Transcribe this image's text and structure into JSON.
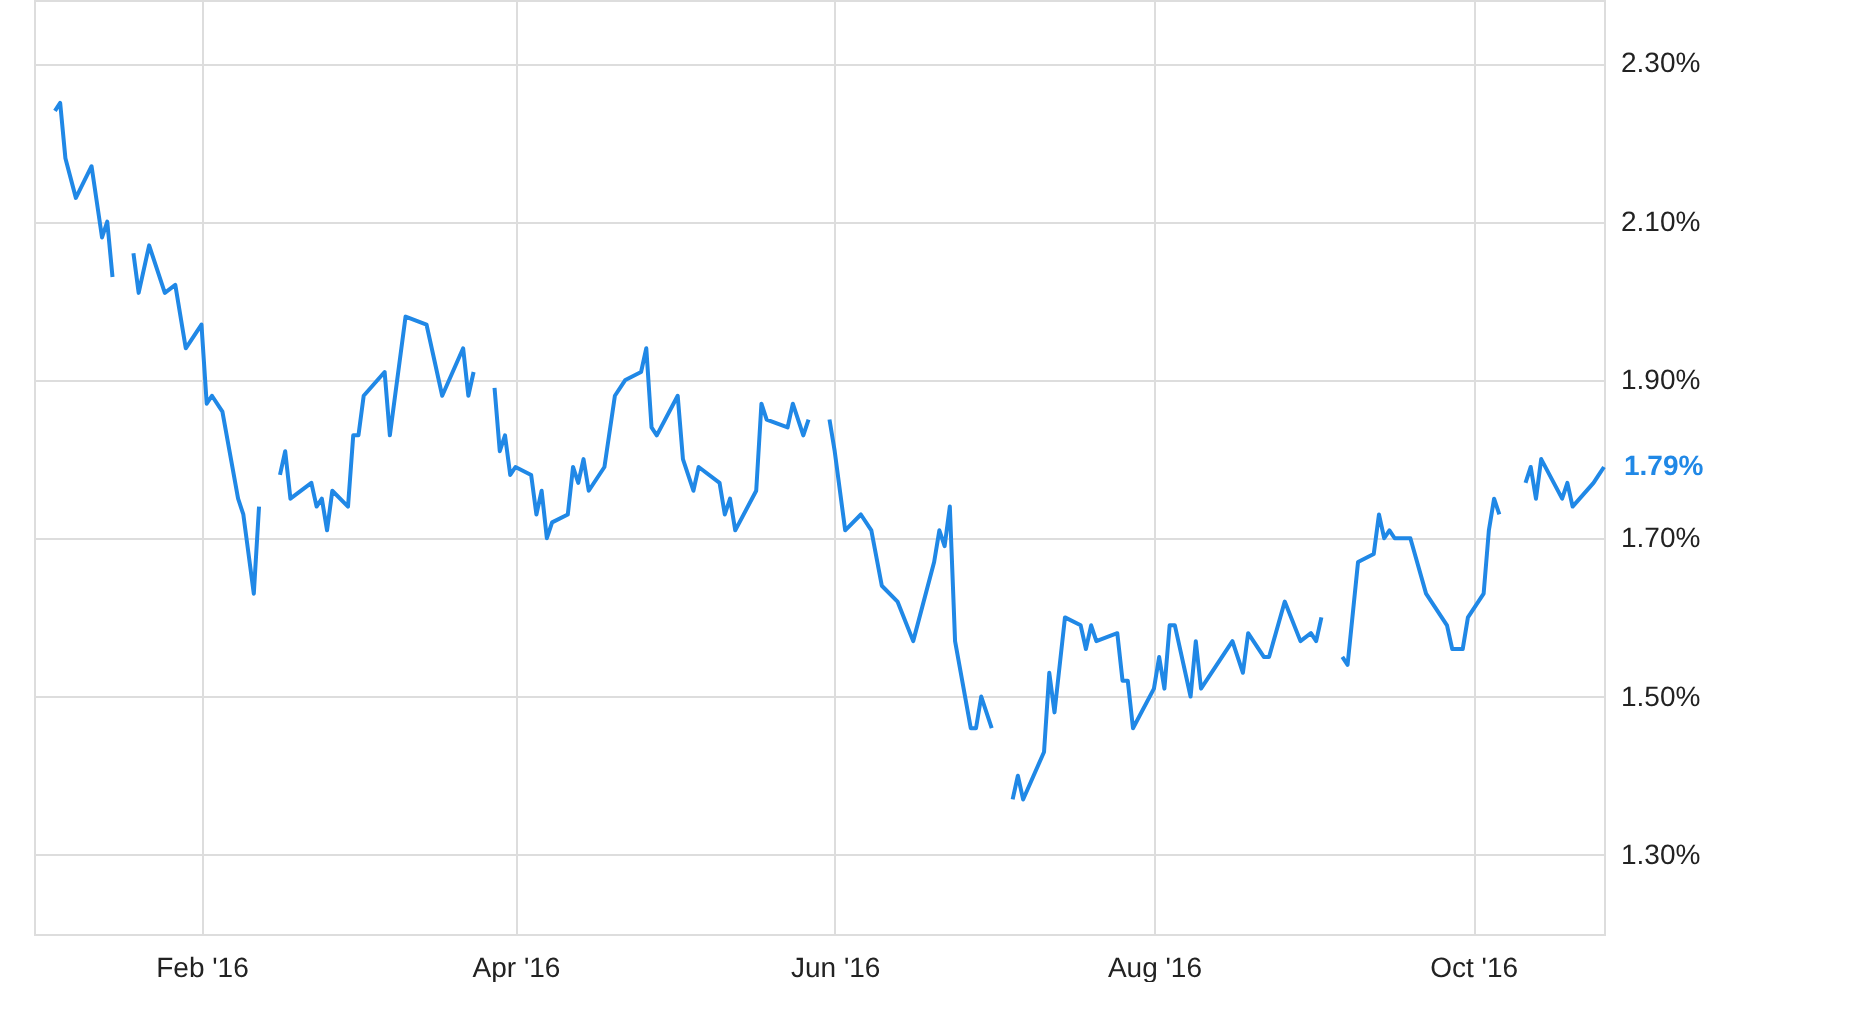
{
  "chart_data": {
    "type": "line",
    "x": [
      "2016-01-04",
      "2016-01-05",
      "2016-01-06",
      "2016-01-08",
      "2016-01-11",
      "2016-01-13",
      "2016-01-14",
      "2016-01-15",
      "2016-01-18",
      "2016-01-19",
      "2016-01-20",
      "2016-01-22",
      "2016-01-25",
      "2016-01-27",
      "2016-01-29",
      "2016-02-01",
      "2016-02-02",
      "2016-02-03",
      "2016-02-05",
      "2016-02-08",
      "2016-02-09",
      "2016-02-11",
      "2016-02-12",
      "2016-02-15",
      "2016-02-16",
      "2016-02-17",
      "2016-02-18",
      "2016-02-22",
      "2016-02-23",
      "2016-02-24",
      "2016-02-25",
      "2016-02-26",
      "2016-02-29",
      "2016-03-01",
      "2016-03-02",
      "2016-03-03",
      "2016-03-07",
      "2016-03-08",
      "2016-03-11",
      "2016-03-15",
      "2016-03-18",
      "2016-03-22",
      "2016-03-23",
      "2016-03-24",
      "2016-03-25",
      "2016-03-28",
      "2016-03-29",
      "2016-03-30",
      "2016-03-31",
      "2016-04-01",
      "2016-04-04",
      "2016-04-05",
      "2016-04-06",
      "2016-04-07",
      "2016-04-08",
      "2016-04-11",
      "2016-04-12",
      "2016-04-13",
      "2016-04-14",
      "2016-04-15",
      "2016-04-18",
      "2016-04-20",
      "2016-04-22",
      "2016-04-25",
      "2016-04-26",
      "2016-04-27",
      "2016-04-28",
      "2016-05-02",
      "2016-05-03",
      "2016-05-05",
      "2016-05-06",
      "2016-05-10",
      "2016-05-11",
      "2016-05-12",
      "2016-05-13",
      "2016-05-17",
      "2016-05-18",
      "2016-05-19",
      "2016-05-23",
      "2016-05-24",
      "2016-05-26",
      "2016-05-27",
      "2016-05-30",
      "2016-05-31",
      "2016-06-01",
      "2016-06-03",
      "2016-06-06",
      "2016-06-08",
      "2016-06-10",
      "2016-06-13",
      "2016-06-16",
      "2016-06-20",
      "2016-06-21",
      "2016-06-22",
      "2016-06-23",
      "2016-06-24",
      "2016-06-27",
      "2016-06-28",
      "2016-06-29",
      "2016-07-01",
      "2016-07-04",
      "2016-07-05",
      "2016-07-06",
      "2016-07-07",
      "2016-07-11",
      "2016-07-12",
      "2016-07-13",
      "2016-07-15",
      "2016-07-18",
      "2016-07-19",
      "2016-07-20",
      "2016-07-21",
      "2016-07-25",
      "2016-07-26",
      "2016-07-27",
      "2016-07-28",
      "2016-08-01",
      "2016-08-02",
      "2016-08-03",
      "2016-08-04",
      "2016-08-05",
      "2016-08-08",
      "2016-08-09",
      "2016-08-10",
      "2016-08-16",
      "2016-08-18",
      "2016-08-19",
      "2016-08-22",
      "2016-08-23",
      "2016-08-26",
      "2016-08-29",
      "2016-08-31",
      "2016-09-01",
      "2016-09-02",
      "2016-09-05",
      "2016-09-06",
      "2016-09-07",
      "2016-09-09",
      "2016-09-12",
      "2016-09-13",
      "2016-09-14",
      "2016-09-15",
      "2016-09-16",
      "2016-09-19",
      "2016-09-22",
      "2016-09-26",
      "2016-09-27",
      "2016-09-29",
      "2016-09-30",
      "2016-10-03",
      "2016-10-04",
      "2016-10-05",
      "2016-10-06",
      "2016-10-10",
      "2016-10-11",
      "2016-10-12",
      "2016-10-13",
      "2016-10-14",
      "2016-10-18",
      "2016-10-19",
      "2016-10-20",
      "2016-10-24",
      "2016-10-25",
      "2016-10-26"
    ],
    "series": [
      {
        "color": "#2088e6",
        "values": [
          2.24,
          2.25,
          2.18,
          2.13,
          2.17,
          2.08,
          2.1,
          2.03,
          null,
          2.06,
          2.01,
          2.07,
          2.01,
          2.02,
          1.94,
          1.97,
          1.87,
          1.88,
          1.86,
          1.75,
          1.73,
          1.63,
          1.74,
          null,
          1.78,
          1.81,
          1.75,
          1.77,
          1.74,
          1.75,
          1.71,
          1.76,
          1.74,
          1.83,
          1.83,
          1.88,
          1.91,
          1.83,
          1.98,
          1.97,
          1.88,
          1.94,
          1.88,
          1.91,
          null,
          1.89,
          1.81,
          1.83,
          1.78,
          1.79,
          1.78,
          1.73,
          1.76,
          1.7,
          1.72,
          1.73,
          1.79,
          1.77,
          1.8,
          1.76,
          1.79,
          1.88,
          1.9,
          1.91,
          1.94,
          1.84,
          1.83,
          1.88,
          1.8,
          1.76,
          1.79,
          1.77,
          1.73,
          1.75,
          1.71,
          1.76,
          1.87,
          1.85,
          1.84,
          1.87,
          1.83,
          1.85,
          null,
          1.85,
          1.81,
          1.71,
          1.73,
          1.71,
          1.64,
          1.62,
          1.57,
          1.67,
          1.71,
          1.69,
          1.74,
          1.57,
          1.46,
          1.46,
          1.5,
          1.46,
          null,
          1.37,
          1.4,
          1.37,
          1.43,
          1.53,
          1.48,
          1.6,
          1.59,
          1.56,
          1.59,
          1.57,
          1.58,
          1.52,
          1.52,
          1.46,
          1.51,
          1.55,
          1.51,
          1.59,
          1.59,
          1.5,
          1.57,
          1.51,
          1.57,
          1.53,
          1.58,
          1.55,
          1.55,
          1.62,
          1.57,
          1.58,
          1.57,
          1.6,
          null,
          1.55,
          1.54,
          1.67,
          1.68,
          1.73,
          1.7,
          1.71,
          1.7,
          1.7,
          1.63,
          1.59,
          1.56,
          1.56,
          1.6,
          1.63,
          1.71,
          1.75,
          1.73,
          null,
          1.77,
          1.79,
          1.75,
          1.8,
          1.75,
          1.77,
          1.74,
          1.77,
          1.78,
          1.79
        ]
      }
    ],
    "xlim": [
      "2015-12-31",
      "2016-10-26"
    ],
    "xticks": [
      {
        "value": "2016-02-01",
        "label": "Feb '16"
      },
      {
        "value": "2016-04-01",
        "label": "Apr '16"
      },
      {
        "value": "2016-06-01",
        "label": "Jun '16"
      },
      {
        "value": "2016-08-01",
        "label": "Aug '16"
      },
      {
        "value": "2016-10-01",
        "label": "Oct '16"
      }
    ],
    "ylim": [
      1.2,
      2.38
    ],
    "yticks": [
      {
        "value": 1.3,
        "label": "1.30%"
      },
      {
        "value": 1.5,
        "label": "1.50%"
      },
      {
        "value": 1.7,
        "label": "1.70%"
      },
      {
        "value": 1.9,
        "label": "1.90%"
      },
      {
        "value": 2.1,
        "label": "2.10%"
      },
      {
        "value": 2.3,
        "label": "2.30%"
      }
    ],
    "grid": true,
    "annotations": [
      {
        "text": "1.79%",
        "x": "2016-10-26",
        "y": 1.79
      }
    ]
  }
}
